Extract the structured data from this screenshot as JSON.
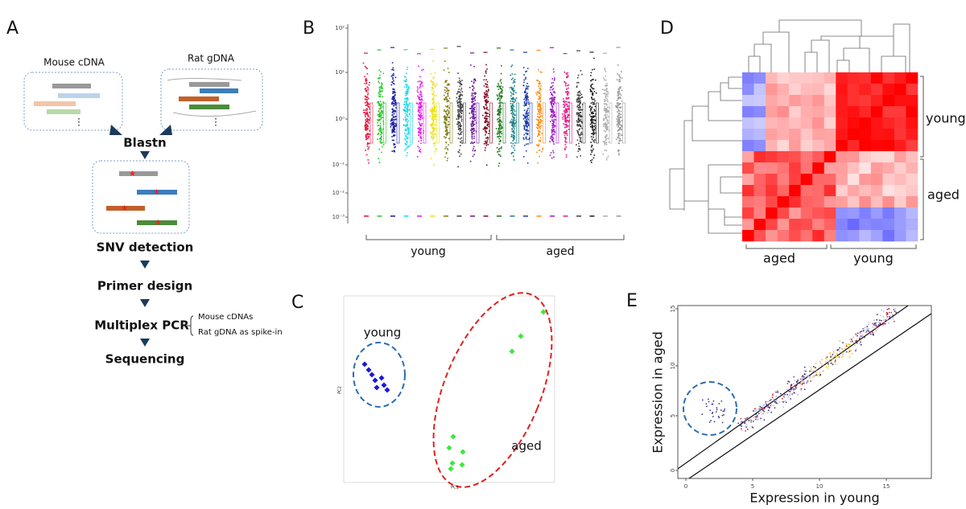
{
  "panels": {
    "a": {
      "letter": "A",
      "mouse": "Mouse cDNA",
      "rat": "Rat gDNA",
      "blastn": "Blastn",
      "snv": "SNV detection",
      "primer": "Primer design",
      "pcr": "Multiplex PCR",
      "pcr_items": [
        "Mouse cDNAs",
        "Rat gDNA as spike-in"
      ],
      "seq": "Sequencing"
    },
    "b": {
      "letter": "B",
      "yticks": [
        "10²",
        "10¹",
        "10⁰",
        "10⁻¹",
        "10⁻²",
        "10⁻³"
      ],
      "groups": [
        "young",
        "aged"
      ]
    },
    "c": {
      "letter": "C",
      "young": "young",
      "aged": "aged",
      "xlabel": "PC1",
      "ylabel": "PC2"
    },
    "d": {
      "letter": "D",
      "right": [
        "young",
        "aged"
      ],
      "bottom": [
        "aged",
        "young"
      ]
    },
    "e": {
      "letter": "E",
      "xticks": [
        "0",
        "5",
        "10",
        "15"
      ],
      "yticks": [
        "0",
        "5",
        "10",
        "15"
      ],
      "xlabel": "Expression in young",
      "ylabel": "Expression in aged"
    }
  }
}
